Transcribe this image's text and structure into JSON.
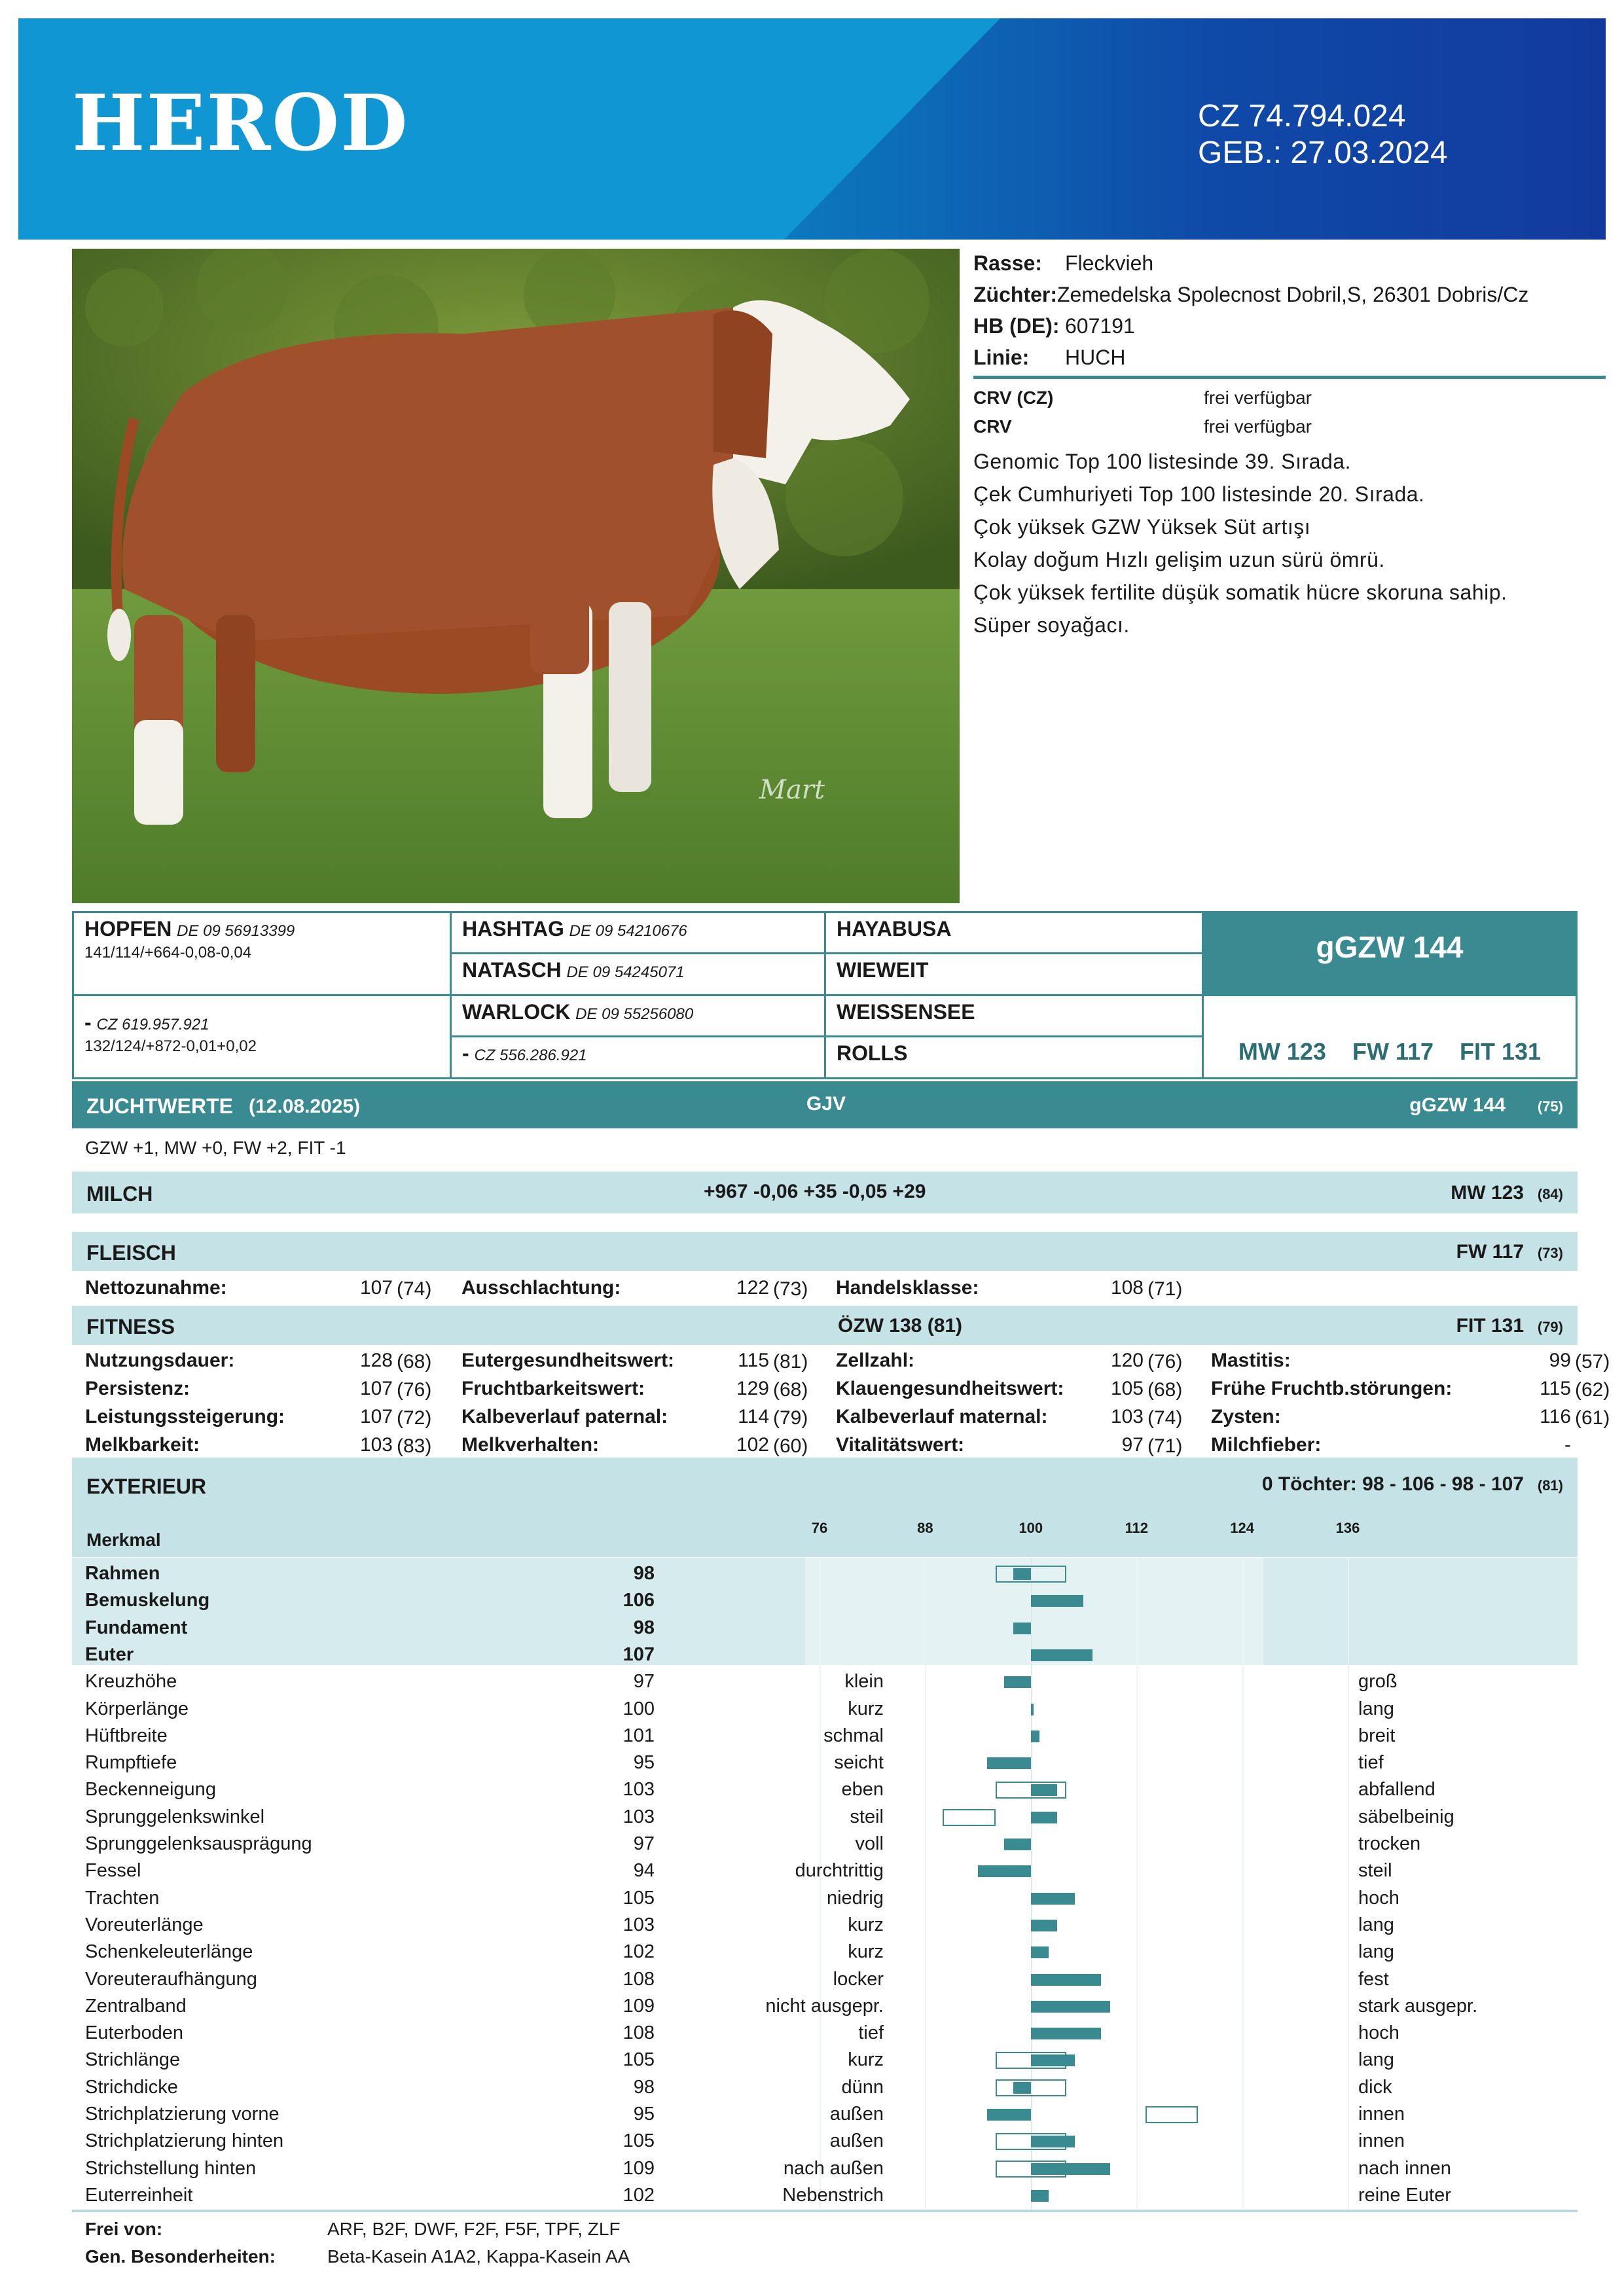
{
  "header": {
    "name": "HEROD",
    "id": "CZ 74.794.024",
    "birth": "GEB.: 27.03.2024"
  },
  "info": {
    "rasse_label": "Rasse:",
    "rasse": "Fleckvieh",
    "zuechter_label": "Züchter:",
    "zuechter": "Zemedelska Spolecnost Dobril,S, 26301 Dobris/Cz",
    "hb_label": "HB (DE):",
    "hb": "607191",
    "linie_label": "Linie:",
    "linie": "HUCH",
    "crv_cz_label": "CRV (CZ)",
    "crv_cz": "frei verfügbar",
    "crv_label": "CRV",
    "crv": "frei verfügbar",
    "notes": [
      "Genomic Top 100 listesinde  39. Sırada.",
      "Çek Cumhuriyeti Top 100 listesinde 20. Sırada.",
      "Çok yüksek GZW Yüksek Süt artışı",
      "Kolay doğum Hızlı gelişim uzun sürü ömrü.",
      "Çok yüksek fertilite düşük somatik hücre skoruna sahip.",
      "Süper soyağacı."
    ]
  },
  "photo": {
    "watermark": "Mart"
  },
  "pedigree": {
    "sire_name": "HOPFEN",
    "sire_id": "DE 09 56913399",
    "sire_values": "141/114/+664-0,08-0,04",
    "dam_name": "-",
    "dam_id": "CZ 619.957.921",
    "dam_values": "132/124/+872-0,01+0,02",
    "ss_name": "HASHTAG",
    "ss_id": "DE 09 54210676",
    "sd_name": "NATASCH",
    "sd_id": "DE 09 54245071",
    "ds_name": "WARLOCK",
    "ds_id": "DE 09 55256080",
    "dd_name": "-",
    "dd_id": "CZ 556.286.921",
    "sss": "HAYABUSA",
    "ssd": "WIEWEIT",
    "dss": "WEISSENSEE",
    "dds": "ROLLS",
    "ggzw_box": "gGZW 144",
    "mw_fw_fit": "MW 123    FW 117    FIT 131"
  },
  "zuchtwerte": {
    "label": "ZUCHTWERTE",
    "date": "(12.08.2025)",
    "gjv": "GJV",
    "ggzw": "gGZW 144",
    "ggzw_rel": "(75)",
    "gzw_line": "GZW +1, MW +0, FW +2, FIT -1"
  },
  "milch": {
    "label": "MILCH",
    "values": "+967 -0,06 +35 -0,05 +29",
    "mw": "MW 123",
    "mw_rel": "(84)"
  },
  "fleisch": {
    "label": "FLEISCH",
    "fw": "FW 117",
    "fw_rel": "(73)",
    "items": [
      {
        "label": "Nettozunahme:",
        "value": "107",
        "rel": "(74)"
      },
      {
        "label": "Ausschlachtung:",
        "value": "122",
        "rel": "(73)"
      },
      {
        "label": "Handelsklasse:",
        "value": "108",
        "rel": "(71)"
      }
    ]
  },
  "fitness": {
    "label": "FITNESS",
    "oezw": "ÖZW 138 (81)",
    "fit": "FIT 131",
    "fit_rel": "(79)",
    "items": [
      {
        "label": "Nutzungsdauer:",
        "value": "128",
        "rel": "(68)"
      },
      {
        "label": "Eutergesundheitswert:",
        "value": "115",
        "rel": "(81)"
      },
      {
        "label": "Zellzahl:",
        "value": "120",
        "rel": "(76)"
      },
      {
        "label": "Mastitis:",
        "value": "99",
        "rel": "(57)"
      },
      {
        "label": "Persistenz:",
        "value": "107",
        "rel": "(76)"
      },
      {
        "label": "Fruchtbarkeitswert:",
        "value": "129",
        "rel": "(68)"
      },
      {
        "label": "Klauengesundheitswert:",
        "value": "105",
        "rel": "(68)"
      },
      {
        "label": "Frühe Fruchtb.störungen:",
        "value": "115",
        "rel": "(62)"
      },
      {
        "label": "Leistungssteigerung:",
        "value": "107",
        "rel": "(72)"
      },
      {
        "label": "Kalbeverlauf paternal:",
        "value": "114",
        "rel": "(79)"
      },
      {
        "label": "Kalbeverlauf maternal:",
        "value": "103",
        "rel": "(74)"
      },
      {
        "label": "Zysten:",
        "value": "116",
        "rel": "(61)"
      },
      {
        "label": "Melkbarkeit:",
        "value": "103",
        "rel": "(83)"
      },
      {
        "label": "Melkverhalten:",
        "value": "102",
        "rel": "(60)"
      },
      {
        "label": "Vitalitätswert:",
        "value": "97",
        "rel": "(71)"
      },
      {
        "label": "Milchfieber:",
        "value": "-",
        "rel": ""
      }
    ]
  },
  "exterieur": {
    "label": "EXTERIEUR",
    "toechter": "0 Töchter: 98 - 106 - 98 - 107",
    "toechter_rel": "(81)",
    "merkmal": "Merkmal",
    "scale": [
      "76",
      "88",
      "100",
      "112",
      "124",
      "136"
    ],
    "traits": [
      {
        "name": "Rahmen",
        "value": 98,
        "lo": "",
        "hi": "",
        "bold": true,
        "daughters": true
      },
      {
        "name": "Bemuskelung",
        "value": 106,
        "lo": "",
        "hi": "",
        "bold": true,
        "daughters": false
      },
      {
        "name": "Fundament",
        "value": 98,
        "lo": "",
        "hi": "",
        "bold": true,
        "daughters": false
      },
      {
        "name": "Euter",
        "value": 107,
        "lo": "",
        "hi": "",
        "bold": true,
        "daughters": false
      },
      {
        "name": "Kreuzhöhe",
        "value": 97,
        "lo": "klein",
        "hi": "groß"
      },
      {
        "name": "Körperlänge",
        "value": 100,
        "lo": "kurz",
        "hi": "lang"
      },
      {
        "name": "Hüftbreite",
        "value": 101,
        "lo": "schmal",
        "hi": "breit"
      },
      {
        "name": "Rumpftiefe",
        "value": 95,
        "lo": "seicht",
        "hi": "tief"
      },
      {
        "name": "Beckenneigung",
        "value": 103,
        "lo": "eben",
        "hi": "abfallend",
        "daughters": true
      },
      {
        "name": "Sprunggelenkswinkel",
        "value": 103,
        "lo": "steil",
        "hi": "säbelbeinig",
        "ghost": [
          90,
          96
        ]
      },
      {
        "name": "Sprunggelenksausprägung",
        "value": 97,
        "lo": "voll",
        "hi": "trocken"
      },
      {
        "name": "Fessel",
        "value": 94,
        "lo": "durchtrittig",
        "hi": "steil"
      },
      {
        "name": "Trachten",
        "value": 105,
        "lo": "niedrig",
        "hi": "hoch"
      },
      {
        "name": "Voreuterlänge",
        "value": 103,
        "lo": "kurz",
        "hi": "lang"
      },
      {
        "name": "Schenkeleuterlänge",
        "value": 102,
        "lo": "kurz",
        "hi": "lang"
      },
      {
        "name": "Voreuteraufhängung",
        "value": 108,
        "lo": "locker",
        "hi": "fest"
      },
      {
        "name": "Zentralband",
        "value": 109,
        "lo": "nicht ausgepr.",
        "hi": "stark ausgepr."
      },
      {
        "name": "Euterboden",
        "value": 108,
        "lo": "tief",
        "hi": "hoch"
      },
      {
        "name": "Strichlänge",
        "value": 105,
        "lo": "kurz",
        "hi": "lang",
        "daughters": true
      },
      {
        "name": "Strichdicke",
        "value": 98,
        "lo": "dünn",
        "hi": "dick",
        "daughters": true
      },
      {
        "name": "Strichplatzierung vorne",
        "value": 95,
        "lo": "außen",
        "hi": "innen",
        "ghost": [
          113,
          119
        ]
      },
      {
        "name": "Strichplatzierung hinten",
        "value": 105,
        "lo": "außen",
        "hi": "innen",
        "daughters": true
      },
      {
        "name": "Strichstellung hinten",
        "value": 109,
        "lo": "nach außen",
        "hi": "nach innen",
        "daughters": true
      },
      {
        "name": "Euterreinheit",
        "value": 102,
        "lo": "Nebenstrich",
        "hi": "reine Euter"
      }
    ]
  },
  "footer": {
    "frei_label": "Frei von:",
    "frei": "ARF, B2F, DWF, F2F, F5F, TPF, ZLF",
    "gen_label": "Gen. Besonderheiten:",
    "gen": "Beta-Kasein A1A2, Kappa-Kasein AA"
  },
  "colors": {
    "teal": "#3a8a91",
    "light_teal": "#c5e3e6",
    "header_blue": "#0b7fc0",
    "header_dark": "#123a9e"
  }
}
